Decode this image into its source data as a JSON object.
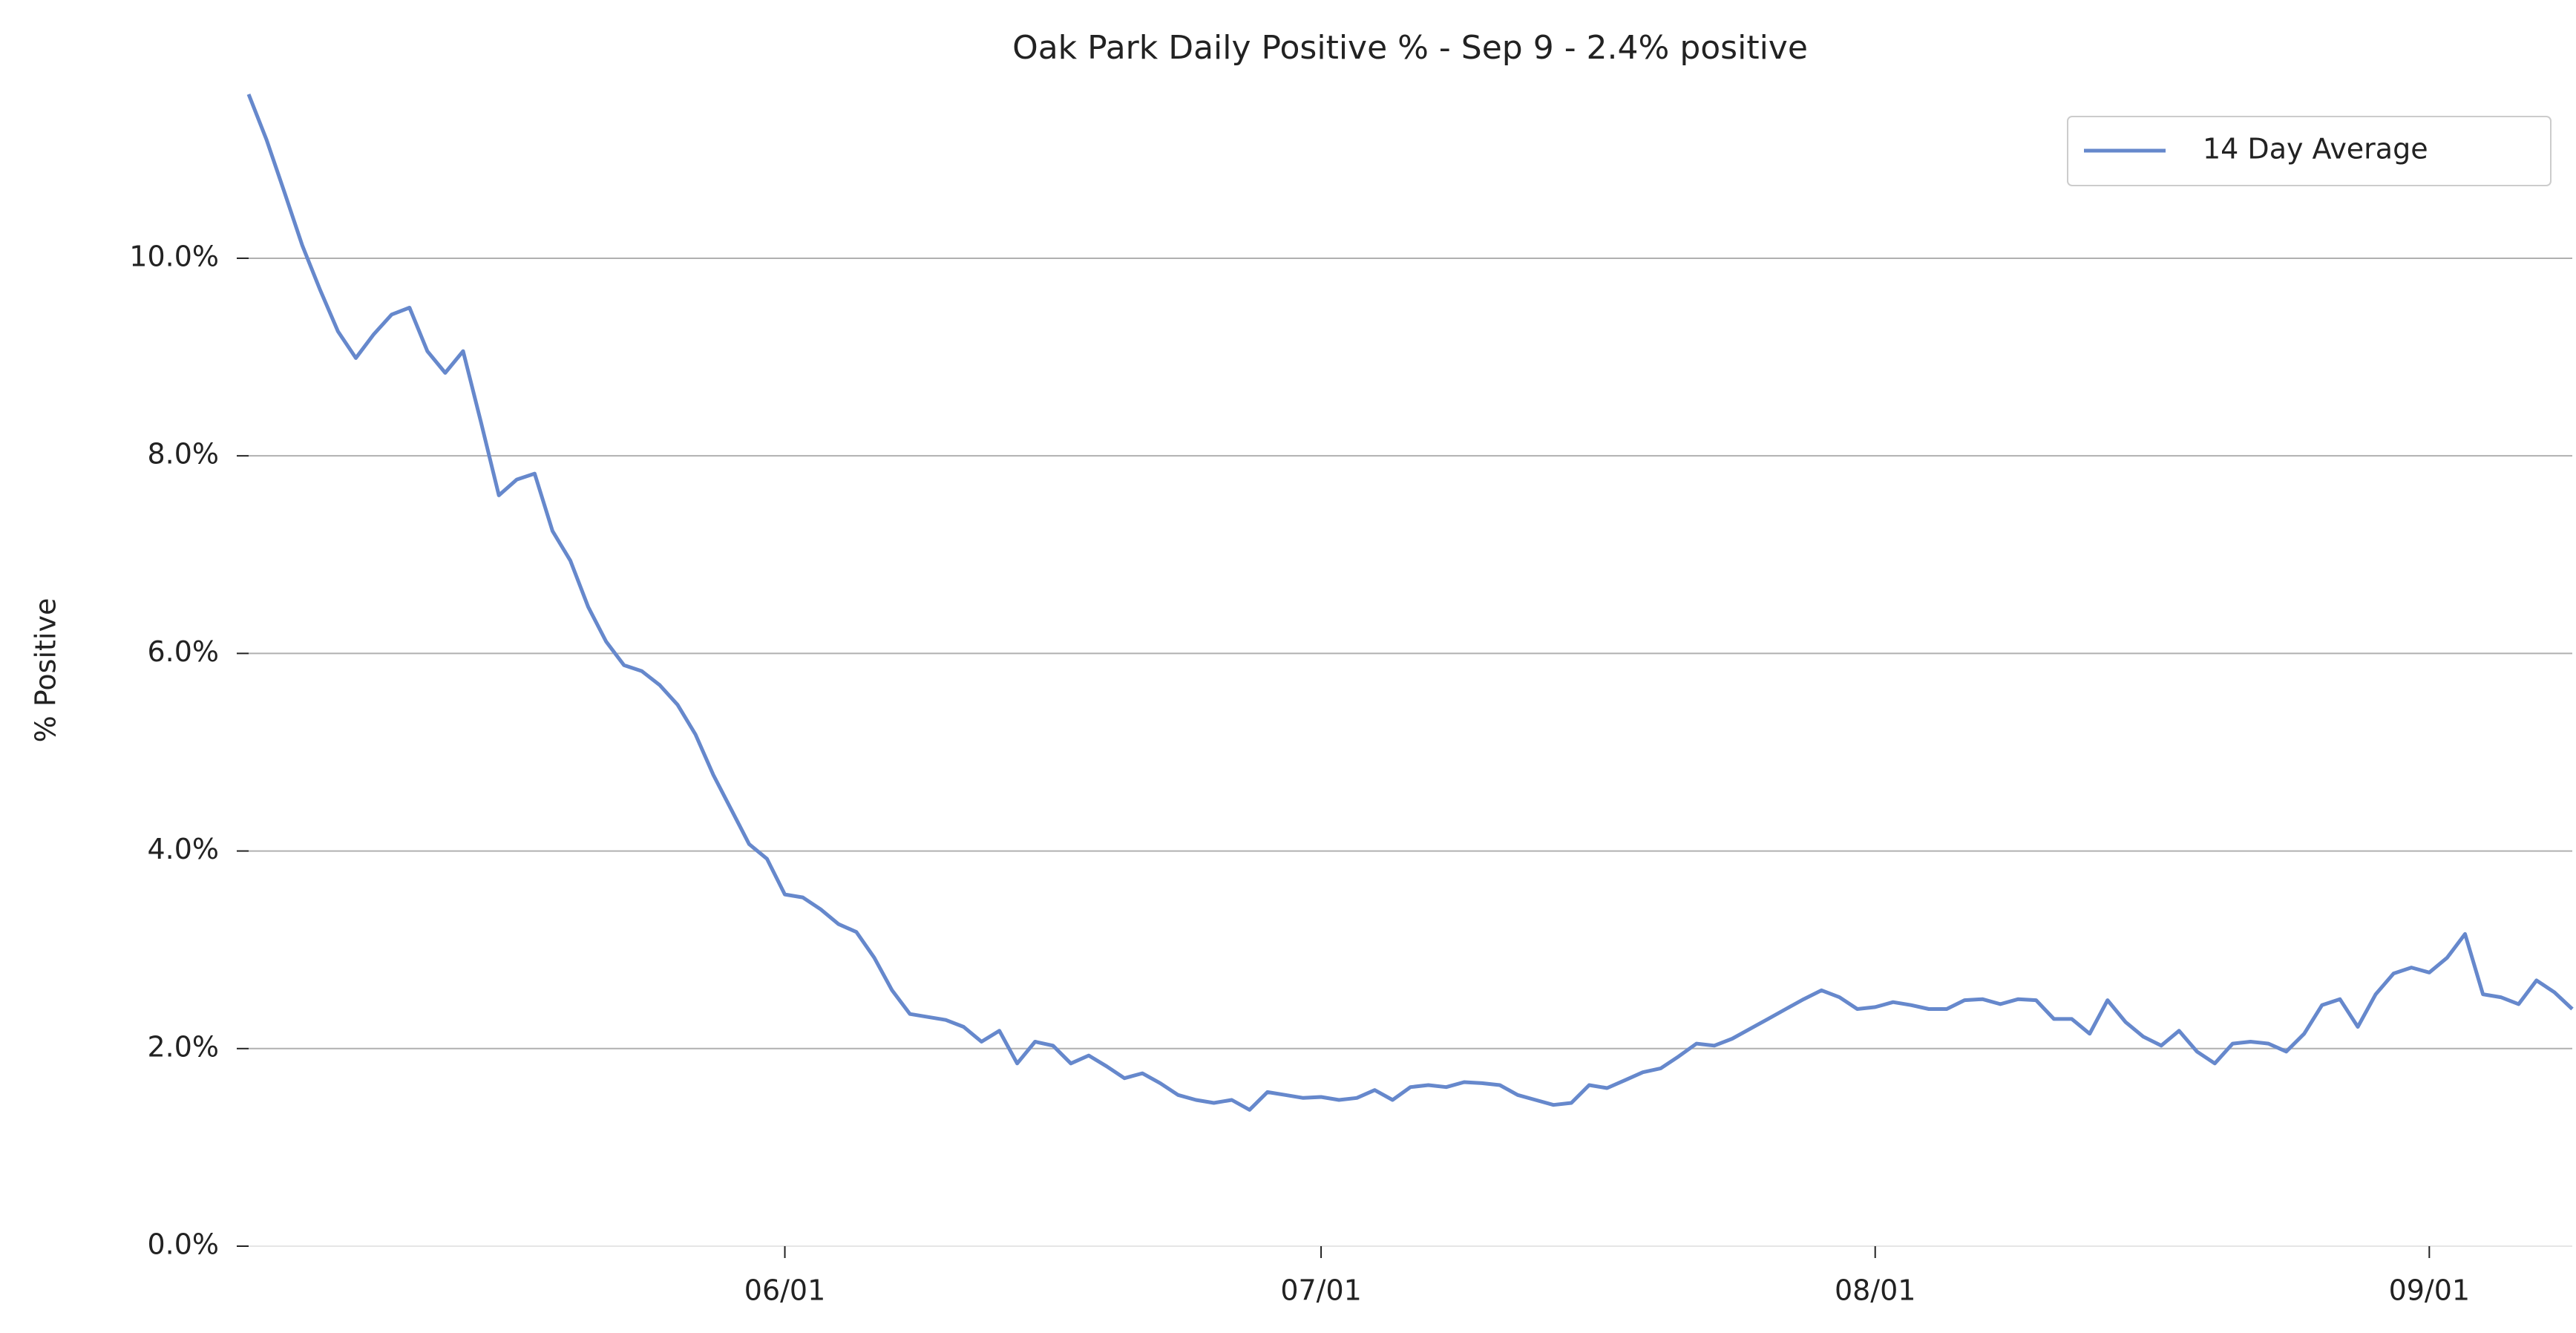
{
  "chart_data": {
    "type": "line",
    "title": "Oak Park Daily Positive % - Sep 9 - 2.4% positive",
    "y_label": "% Positive",
    "x": [
      "05/02",
      "05/03",
      "05/04",
      "05/05",
      "05/06",
      "05/07",
      "05/08",
      "05/09",
      "05/10",
      "05/11",
      "05/12",
      "05/13",
      "05/14",
      "05/15",
      "05/16",
      "05/17",
      "05/18",
      "05/19",
      "05/20",
      "05/21",
      "05/22",
      "05/23",
      "05/24",
      "05/25",
      "05/26",
      "05/27",
      "05/28",
      "05/29",
      "05/30",
      "05/31",
      "06/01",
      "06/02",
      "06/03",
      "06/04",
      "06/05",
      "06/06",
      "06/07",
      "06/08",
      "06/09",
      "06/10",
      "06/11",
      "06/12",
      "06/13",
      "06/14",
      "06/15",
      "06/16",
      "06/17",
      "06/18",
      "06/19",
      "06/20",
      "06/21",
      "06/22",
      "06/23",
      "06/24",
      "06/25",
      "06/26",
      "06/27",
      "06/28",
      "06/29",
      "06/30",
      "07/01",
      "07/02",
      "07/03",
      "07/04",
      "07/05",
      "07/06",
      "07/07",
      "07/08",
      "07/09",
      "07/10",
      "07/11",
      "07/12",
      "07/13",
      "07/14",
      "07/15",
      "07/16",
      "07/17",
      "07/18",
      "07/19",
      "07/20",
      "07/21",
      "07/22",
      "07/23",
      "07/24",
      "07/25",
      "07/26",
      "07/27",
      "07/28",
      "07/29",
      "07/30",
      "07/31",
      "08/01",
      "08/02",
      "08/03",
      "08/04",
      "08/05",
      "08/06",
      "08/07",
      "08/08",
      "08/09",
      "08/10",
      "08/11",
      "08/12",
      "08/13",
      "08/14",
      "08/15",
      "08/16",
      "08/17",
      "08/18",
      "08/19",
      "08/20",
      "08/21",
      "08/22",
      "08/23",
      "08/24",
      "08/25",
      "08/26",
      "08/27",
      "08/28",
      "08/29",
      "08/30",
      "08/31",
      "09/01",
      "09/02",
      "09/03",
      "09/04",
      "09/05",
      "09/06",
      "09/07",
      "09/08",
      "09/09"
    ],
    "series": [
      {
        "name": "14 Day Average",
        "color": "#6688cc",
        "values": [
          11.66,
          11.2,
          10.67,
          10.13,
          9.68,
          9.26,
          8.99,
          9.23,
          9.43,
          9.5,
          9.06,
          8.84,
          9.06,
          8.34,
          7.6,
          7.76,
          7.82,
          7.24,
          6.94,
          6.47,
          6.12,
          5.88,
          5.82,
          5.68,
          5.48,
          5.18,
          4.77,
          4.42,
          4.07,
          3.92,
          3.56,
          3.53,
          3.41,
          3.26,
          3.18,
          2.92,
          2.59,
          2.35,
          2.32,
          2.29,
          2.22,
          2.07,
          2.18,
          1.85,
          2.07,
          2.03,
          1.85,
          1.93,
          1.82,
          1.7,
          1.75,
          1.65,
          1.53,
          1.48,
          1.45,
          1.48,
          1.38,
          1.56,
          1.53,
          1.5,
          1.51,
          1.48,
          1.5,
          1.58,
          1.48,
          1.61,
          1.63,
          1.61,
          1.66,
          1.65,
          1.63,
          1.53,
          1.48,
          1.43,
          1.45,
          1.63,
          1.6,
          1.68,
          1.76,
          1.8,
          1.92,
          2.05,
          2.03,
          2.1,
          2.2,
          2.3,
          2.4,
          2.5,
          2.59,
          2.52,
          2.4,
          2.42,
          2.47,
          2.44,
          2.4,
          2.4,
          2.49,
          2.5,
          2.45,
          2.5,
          2.49,
          2.3,
          2.3,
          2.15,
          2.49,
          2.27,
          2.12,
          2.03,
          2.18,
          1.97,
          1.85,
          2.05,
          2.07,
          2.05,
          1.97,
          2.15,
          2.44,
          2.5,
          2.22,
          2.55,
          2.76,
          2.82,
          2.77,
          2.92,
          3.16,
          2.55,
          2.52,
          2.45,
          2.69,
          2.57,
          2.4
        ]
      }
    ],
    "ylim": [
      0,
      11.66
    ],
    "yticks": [
      {
        "value": 0,
        "label": "0.0%"
      },
      {
        "value": 2,
        "label": "2.0%"
      },
      {
        "value": 4,
        "label": "4.0%"
      },
      {
        "value": 6,
        "label": "6.0%"
      },
      {
        "value": 8,
        "label": "8.0%"
      },
      {
        "value": 10,
        "label": "10.0%"
      }
    ],
    "xticks": [
      "06/01",
      "07/01",
      "08/01",
      "09/01"
    ],
    "grid": true,
    "legend": "upper right"
  }
}
